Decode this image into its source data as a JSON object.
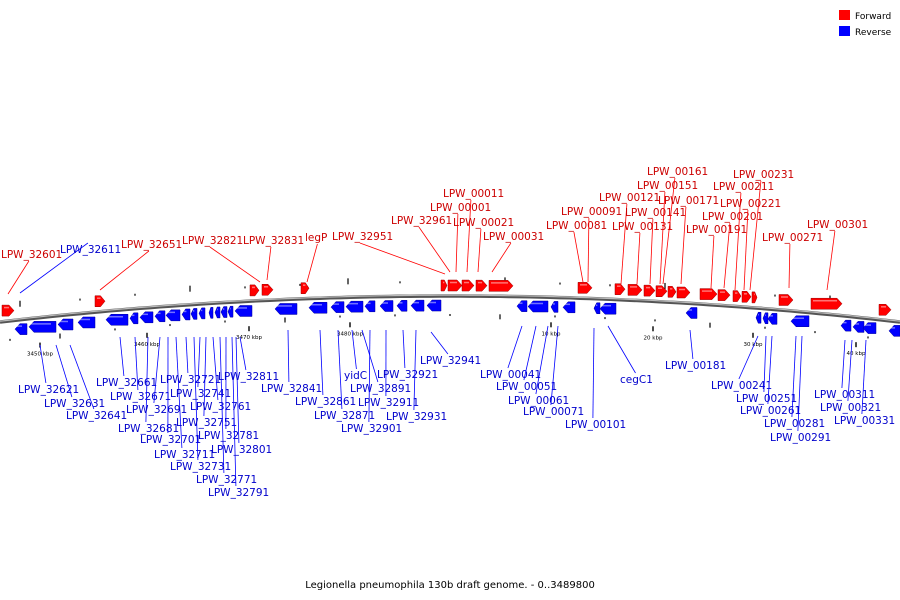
{
  "title": "Legionella pneumophila 130b draft genome. - 0..3489800",
  "legend": [
    {
      "label": "Forward",
      "color": "#ff0000"
    },
    {
      "label": "Reverse",
      "color": "#0000ff"
    }
  ],
  "colors": {
    "forward": "#ff0000",
    "reverse": "#0000ff",
    "forward_label": "#cc0000",
    "reverse_label": "#0000cc",
    "backbone": "#808080"
  },
  "scale_ticks": [
    {
      "label": "3450 kbp"
    },
    {
      "label": "3460 kbp"
    },
    {
      "label": "3470 kbp"
    },
    {
      "label": "3480 kbp"
    },
    {
      "label": "10 kbp"
    },
    {
      "label": "20 kbp"
    },
    {
      "label": "30 kbp"
    },
    {
      "label": "40 kbp"
    }
  ],
  "forward_genes": [
    "LPW_32601",
    "LPW_32651",
    "LPW_32821",
    "LPW_32831",
    "legP",
    "LPW_32951",
    "LPW_32961",
    "LPW_00001",
    "LPW_00011",
    "LPW_00021",
    "LPW_00031",
    "LPW_00081",
    "LPW_00091",
    "LPW_00121",
    "LPW_00131",
    "LPW_00141",
    "LPW_00151",
    "LPW_00161",
    "LPW_00171",
    "LPW_00191",
    "LPW_00201",
    "LPW_00211",
    "LPW_00221",
    "LPW_00231",
    "LPW_00271",
    "LPW_00301"
  ],
  "reverse_genes": [
    "LPW_32611",
    "LPW_32621",
    "LPW_32631",
    "LPW_32641",
    "LPW_32661",
    "LPW_32671",
    "LPW_32681",
    "LPW_32691",
    "LPW_32701",
    "LPW_32711",
    "LPW_32721",
    "LPW_32731",
    "LPW_32741",
    "LPW_32751",
    "LPW_32761",
    "LPW_32771",
    "LPW_32781",
    "LPW_32791",
    "LPW_32801",
    "LPW_32811",
    "LPW_32841",
    "LPW_32861",
    "LPW_32871",
    "yidC",
    "LPW_32891",
    "LPW_32901",
    "LPW_32911",
    "LPW_32921",
    "LPW_32931",
    "LPW_32941",
    "LPW_00041",
    "LPW_00051",
    "LPW_00061",
    "LPW_00071",
    "LPW_00101",
    "cegC1",
    "LPW_00181",
    "LPW_00241",
    "LPW_00251",
    "LPW_00261",
    "LPW_00281",
    "LPW_00291",
    "LPW_00311",
    "LPW_00321",
    "LPW_00331"
  ]
}
